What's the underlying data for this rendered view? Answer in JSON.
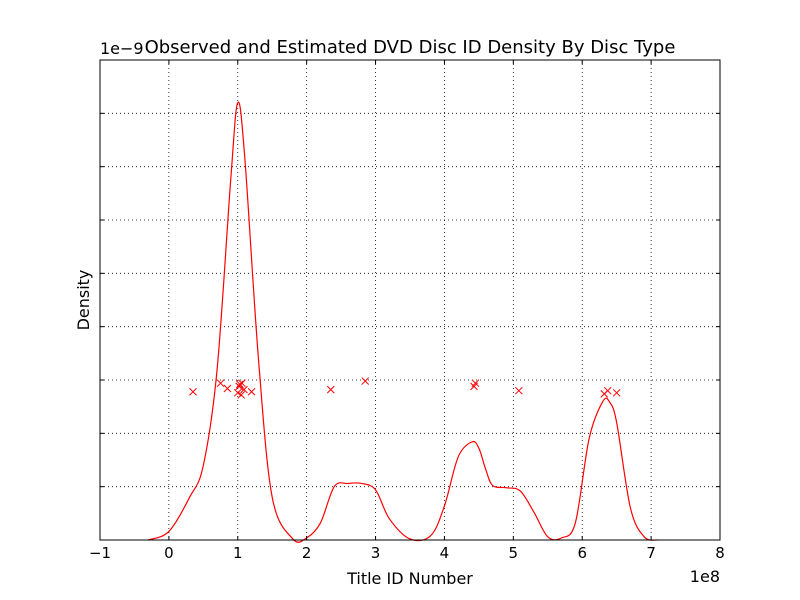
{
  "chart_data": {
    "type": "line",
    "title": "Observed and Estimated DVD Disc ID Density By Disc Type",
    "xlabel": "Title ID Number",
    "ylabel": "Density",
    "x_offset_text": "1e8",
    "y_offset_text": "1e−9",
    "xlim": [
      -100000000,
      800000000
    ],
    "ylim": [
      0,
      4.5e-09
    ],
    "x_ticks": [
      -100000000,
      0,
      100000000,
      200000000,
      300000000,
      400000000,
      500000000,
      600000000,
      700000000,
      800000000
    ],
    "x_tick_labels": [
      "−1",
      "0",
      "1",
      "2",
      "3",
      "4",
      "5",
      "6",
      "7",
      "8"
    ],
    "y_ticks": [
      0,
      5e-10,
      1e-09,
      1.5e-09,
      2e-09,
      2.5e-09,
      3e-09,
      3.5e-09,
      4e-09,
      4.5e-09
    ],
    "grid": true,
    "grid_style": "dotted",
    "color": "#ff0000",
    "series": [
      {
        "kind": "line",
        "x": [
          -30000000,
          0,
          30000000,
          50000000,
          70000000,
          90000000,
          100000000,
          110000000,
          130000000,
          150000000,
          180000000,
          200000000,
          220000000,
          240000000,
          260000000,
          280000000,
          300000000,
          320000000,
          350000000,
          380000000,
          400000000,
          420000000,
          440000000,
          450000000,
          460000000,
          470000000,
          490000000,
          510000000,
          530000000,
          550000000,
          570000000,
          590000000,
          610000000,
          630000000,
          640000000,
          650000000,
          670000000,
          690000000,
          710000000
        ],
        "y": [
          0,
          8e-11,
          4e-10,
          7e-10,
          1.6e-09,
          3.4e-09,
          4.1e-09,
          3.6e-09,
          1.7e-09,
          4e-10,
          1e-11,
          2e-11,
          1.6e-10,
          5e-10,
          5.3e-10,
          5.3e-10,
          4.7e-10,
          2e-10,
          1e-11,
          4e-11,
          3.2e-10,
          7.8e-10,
          9.2e-10,
          8.6e-10,
          6.6e-10,
          5.1e-10,
          4.9e-10,
          4.6e-10,
          2.6e-10,
          3e-11,
          2e-11,
          1.6e-10,
          9.5e-10,
          1.3e-09,
          1.29e-09,
          1.1e-09,
          3e-10,
          3e-11,
          0
        ]
      },
      {
        "kind": "scatter",
        "marker": "x",
        "x": [
          35000000,
          75000000,
          85000000,
          100000000,
          102000000,
          103000000,
          105000000,
          106000000,
          109000000,
          120000000,
          235000000,
          285000000,
          443000000,
          445000000,
          508000000,
          632000000,
          637000000,
          650000000
        ],
        "y": [
          1.39e-09,
          1.47e-09,
          1.42e-09,
          1.38e-09,
          1.44e-09,
          1.46e-09,
          1.36e-09,
          1.47e-09,
          1.41e-09,
          1.39e-09,
          1.41e-09,
          1.49e-09,
          1.44e-09,
          1.47e-09,
          1.4e-09,
          1.37e-09,
          1.4e-09,
          1.38e-09
        ]
      }
    ]
  }
}
